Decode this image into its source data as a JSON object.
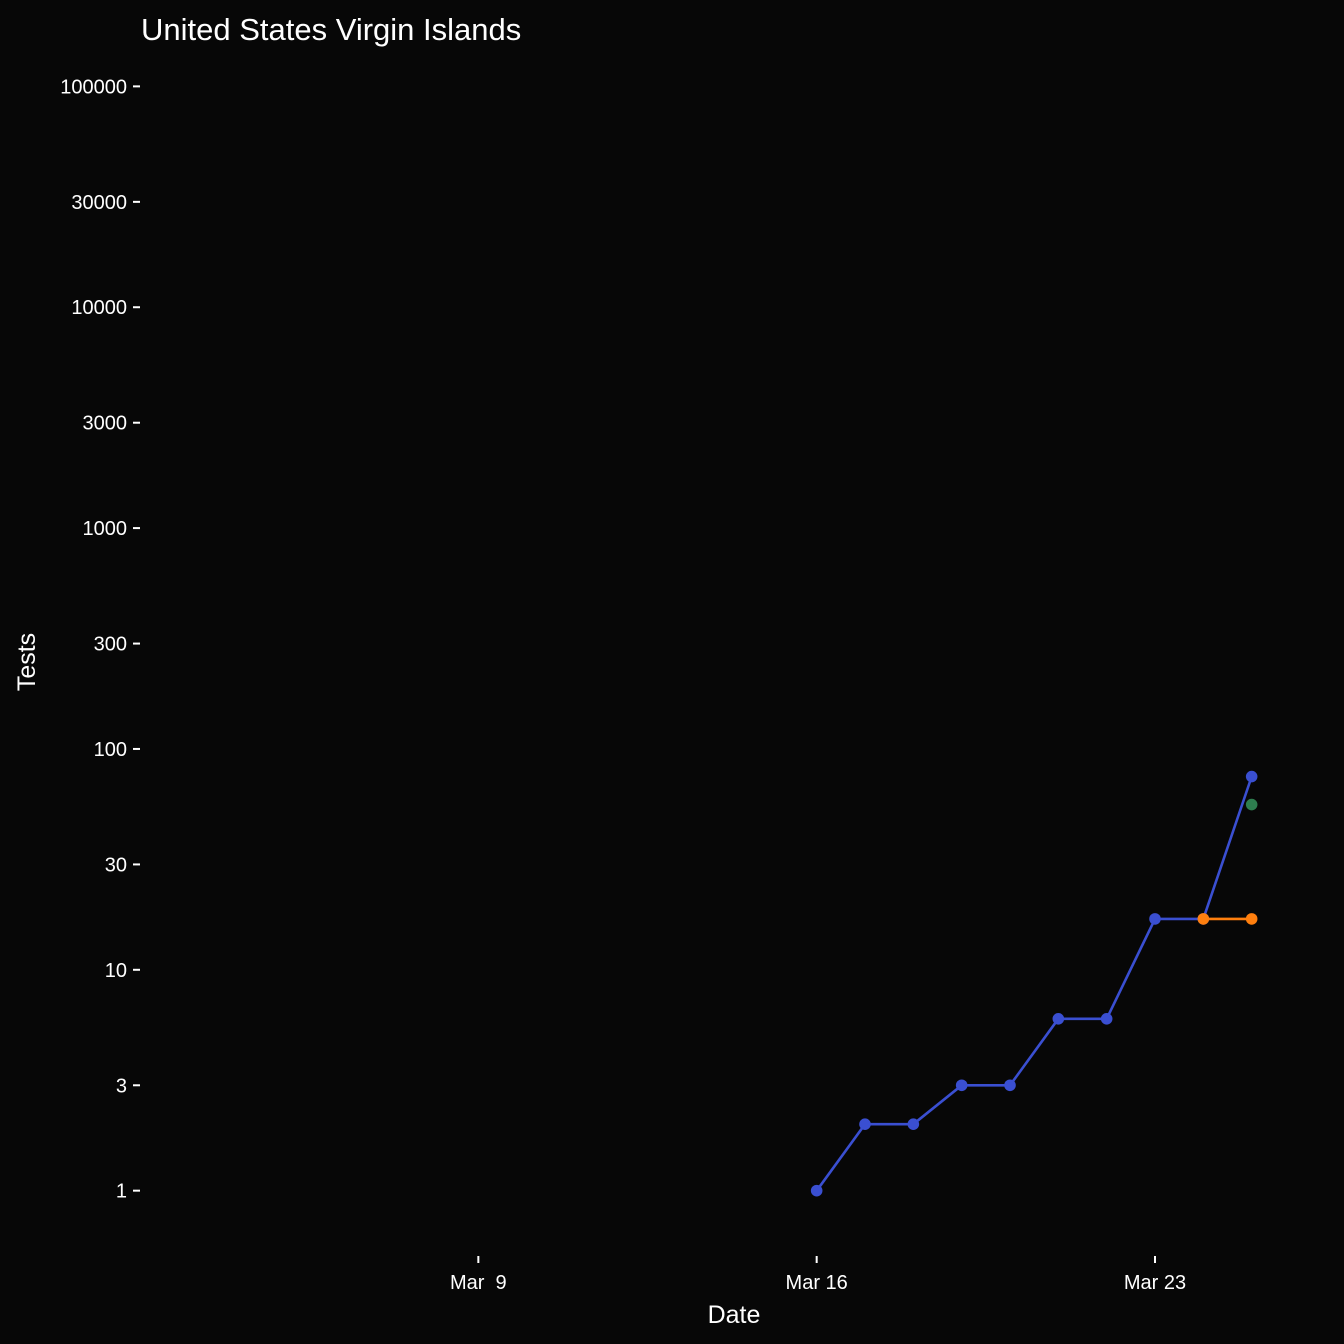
{
  "chart_data": {
    "type": "line",
    "title": "United States Virgin Islands",
    "xlabel": "Date",
    "ylabel": "Tests",
    "y_scale": "log10",
    "ylim": [
      0.55,
      180000
    ],
    "xlim": [
      "2020-03-02",
      "2020-03-26"
    ],
    "grid": false,
    "background": "#070707",
    "x_ticks": [
      {
        "label": "Mar  9",
        "date": "2020-03-09"
      },
      {
        "label": "Mar 16",
        "date": "2020-03-16"
      },
      {
        "label": "Mar 23",
        "date": "2020-03-23"
      }
    ],
    "y_ticks": [
      1,
      3,
      10,
      30,
      100,
      300,
      1000,
      3000,
      10000,
      30000,
      100000
    ],
    "y_tick_labels": [
      "1",
      "3",
      "10",
      "30",
      "100",
      "300",
      "1000",
      "3000",
      "10000",
      "30000",
      "100000"
    ],
    "series": [
      {
        "color": "#3a4fd1",
        "points": [
          {
            "date": "2020-03-16",
            "value": 1
          },
          {
            "date": "2020-03-17",
            "value": 2
          },
          {
            "date": "2020-03-18",
            "value": 2
          },
          {
            "date": "2020-03-19",
            "value": 3
          },
          {
            "date": "2020-03-20",
            "value": 3
          },
          {
            "date": "2020-03-21",
            "value": 6
          },
          {
            "date": "2020-03-22",
            "value": 6
          },
          {
            "date": "2020-03-23",
            "value": 17
          },
          {
            "date": "2020-03-24",
            "value": 17
          },
          {
            "date": "2020-03-25",
            "value": 75
          }
        ]
      },
      {
        "color": "#ff7f0e",
        "points": [
          {
            "date": "2020-03-24",
            "value": 17
          },
          {
            "date": "2020-03-25",
            "value": 17
          }
        ]
      },
      {
        "color": "#2e7d4f",
        "points": [
          {
            "date": "2020-03-25",
            "value": 56
          }
        ]
      }
    ]
  }
}
